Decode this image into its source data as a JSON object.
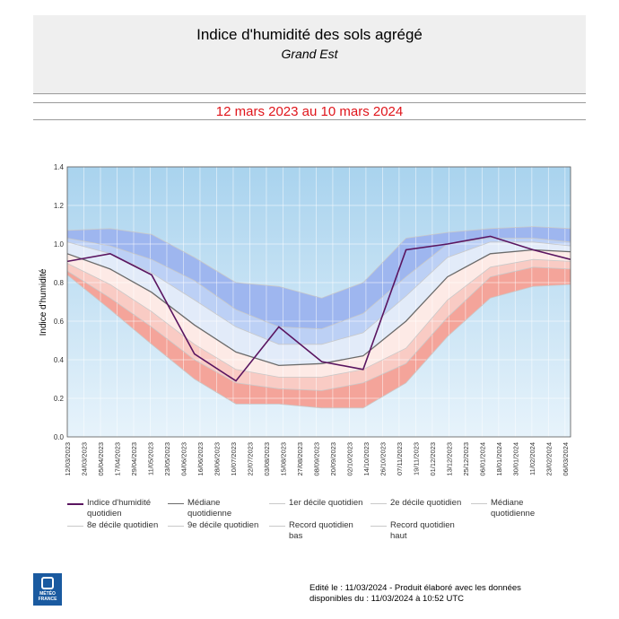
{
  "header": {
    "title": "Indice d'humidité des sols agrégé",
    "subtitle": "Grand Est",
    "period": "12 mars 2023 au 10 mars 2024"
  },
  "footer": {
    "line1": "Edité le : 11/03/2024 - Produit élaboré avec les données",
    "line2": "disponibles du : 11/03/2024 à 10:52 UTC"
  },
  "logo": {
    "text1": "MÉTÉO",
    "text2": "FRANCE"
  },
  "colors": {
    "plot_bg_top": "#a9d3ee",
    "plot_bg_bottom": "#e7f3fb",
    "band_record_bas_1er_decile": "#f4a49a",
    "band_1er_2e_decile": "#f9cbc4",
    "band_2e_decile_mediane": "#fdeae6",
    "band_mediane_8e_decile": "#e2ebf9",
    "band_8e_9e_decile": "#bcd0f5",
    "band_9e_decile_record_haut": "#9eb6ef",
    "indice_line": "#5a1560",
    "mediane_line": "#6b6b6b",
    "decile_line": "#c9c9c9"
  },
  "legend": [
    {
      "label": "Indice d'humidité quotidien",
      "color": "#5a1560"
    },
    {
      "label": "Médiane quotidienne",
      "color": "#6b6b6b"
    },
    {
      "label": "1er décile quotidien",
      "color": "#c9c9c9"
    },
    {
      "label": "2e décile quotidien",
      "color": "#c9c9c9"
    },
    {
      "label": "Médiane quotidienne",
      "color": "#c9c9c9"
    },
    {
      "label": "8e décile quotidien",
      "color": "#c9c9c9"
    },
    {
      "label": "9e décile quotidien",
      "color": "#c9c9c9"
    },
    {
      "label": "Record quotidien bas",
      "color": "#c9c9c9"
    },
    {
      "label": "Record quotidien haut",
      "color": "#c9c9c9"
    }
  ],
  "chart_data": {
    "type": "area",
    "ylabel": "Indice d'humidité",
    "ylim": [
      0.0,
      1.4
    ],
    "yticks": [
      "0.0",
      "0.2",
      "0.4",
      "0.6",
      "0.8",
      "1.0",
      "1.2",
      "1.4"
    ],
    "grid": true,
    "xlim": [
      "12/03/2023",
      "10/03/2024"
    ],
    "xticks": [
      "12/03/2023",
      "24/03/2023",
      "05/04/2023",
      "17/04/2023",
      "29/04/2023",
      "11/05/2023",
      "23/05/2023",
      "04/06/2023",
      "16/06/2023",
      "28/06/2023",
      "10/07/2023",
      "22/07/2023",
      "03/08/2023",
      "15/08/2023",
      "27/08/2023",
      "08/09/2023",
      "20/09/2023",
      "02/10/2023",
      "14/10/2023",
      "26/10/2023",
      "07/11/2023",
      "19/11/2023",
      "01/12/2023",
      "13/12/2023",
      "25/12/2023",
      "06/01/2024",
      "18/01/2024",
      "30/01/2024",
      "11/02/2024",
      "23/02/2024",
      "06/03/2024"
    ],
    "series_x": [
      "12/03/2023",
      "12/04/2023",
      "12/05/2023",
      "12/06/2023",
      "12/07/2023",
      "12/08/2023",
      "12/09/2023",
      "12/10/2023",
      "12/11/2023",
      "12/12/2023",
      "12/01/2024",
      "12/02/2024",
      "10/03/2024"
    ],
    "series": [
      {
        "name": "Record quotidien haut",
        "values": [
          1.07,
          1.08,
          1.05,
          0.93,
          0.8,
          0.78,
          0.72,
          0.8,
          1.03,
          1.06,
          1.08,
          1.09,
          1.08
        ]
      },
      {
        "name": "9e décile quotidien",
        "values": [
          1.03,
          0.99,
          0.92,
          0.81,
          0.66,
          0.57,
          0.56,
          0.64,
          0.83,
          1.0,
          1.03,
          1.03,
          1.01
        ]
      },
      {
        "name": "8e décile quotidien",
        "values": [
          1.01,
          0.95,
          0.85,
          0.71,
          0.57,
          0.48,
          0.48,
          0.54,
          0.73,
          0.93,
          1.01,
          1.01,
          0.99
        ]
      },
      {
        "name": "Médiane quotidienne",
        "values": [
          0.95,
          0.87,
          0.75,
          0.58,
          0.44,
          0.37,
          0.38,
          0.42,
          0.6,
          0.83,
          0.95,
          0.97,
          0.96
        ]
      },
      {
        "name": "2e décile quotidien",
        "values": [
          0.9,
          0.79,
          0.65,
          0.48,
          0.35,
          0.31,
          0.31,
          0.35,
          0.46,
          0.71,
          0.88,
          0.92,
          0.91
        ]
      },
      {
        "name": "1er décile quotidien",
        "values": [
          0.86,
          0.72,
          0.57,
          0.4,
          0.28,
          0.25,
          0.24,
          0.28,
          0.38,
          0.62,
          0.83,
          0.88,
          0.87
        ]
      },
      {
        "name": "Record quotidien bas",
        "values": [
          0.84,
          0.66,
          0.48,
          0.3,
          0.17,
          0.17,
          0.15,
          0.15,
          0.28,
          0.52,
          0.72,
          0.78,
          0.79
        ]
      },
      {
        "name": "Indice d'humidité quotidien",
        "values": [
          0.91,
          0.95,
          0.84,
          0.43,
          0.29,
          0.57,
          0.39,
          0.35,
          0.97,
          1.0,
          1.04,
          0.97,
          0.92
        ]
      }
    ]
  }
}
